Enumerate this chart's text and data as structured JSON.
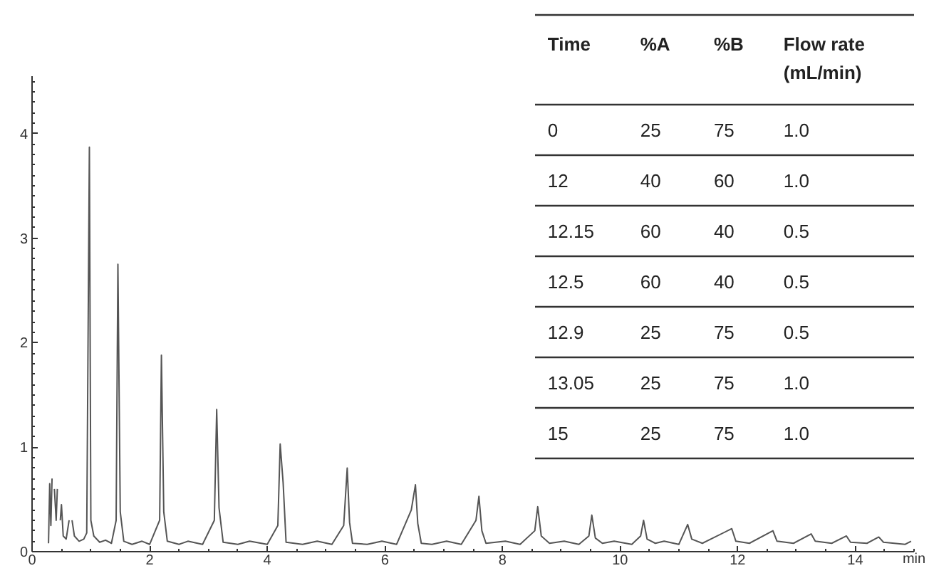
{
  "chart_data": [
    {
      "type": "line",
      "xlabel": "min",
      "color": "#555555",
      "xlim": [
        0,
        15
      ],
      "ylim": [
        0,
        4.55
      ],
      "xticks": [
        0,
        2,
        4,
        6,
        8,
        10,
        12,
        14
      ],
      "yticks": [
        0,
        1,
        2,
        3,
        4
      ],
      "grid": false,
      "marker": "none",
      "line_style": "solid",
      "x": [
        0.28,
        0.3,
        0.32,
        0.34,
        0.36,
        0.38,
        0.41,
        0.43,
        0.46,
        0.48,
        0.5,
        0.53,
        0.58,
        0.63,
        0.655,
        0.68,
        0.72,
        0.8,
        0.88,
        0.93,
        0.975,
        1.0,
        1.05,
        1.15,
        1.25,
        1.35,
        1.43,
        1.46,
        1.5,
        1.56,
        1.7,
        1.87,
        2.0,
        2.17,
        2.2,
        2.24,
        2.3,
        2.5,
        2.65,
        2.9,
        3.1,
        3.14,
        3.18,
        3.25,
        3.5,
        3.7,
        4.0,
        4.18,
        4.22,
        4.27,
        4.32,
        4.6,
        4.85,
        5.1,
        5.3,
        5.36,
        5.4,
        5.45,
        5.7,
        5.95,
        6.2,
        6.45,
        6.52,
        6.56,
        6.62,
        6.8,
        7.05,
        7.3,
        7.55,
        7.6,
        7.65,
        7.72,
        8.05,
        8.3,
        8.55,
        8.6,
        8.66,
        8.8,
        9.05,
        9.3,
        9.47,
        9.52,
        9.58,
        9.7,
        9.9,
        10.2,
        10.35,
        10.4,
        10.46,
        10.6,
        10.75,
        11.0,
        11.15,
        11.22,
        11.4,
        11.9,
        11.97,
        12.2,
        12.6,
        12.67,
        12.95,
        13.25,
        13.32,
        13.6,
        13.85,
        13.92,
        14.2,
        14.4,
        14.48,
        14.85,
        14.95
      ],
      "values": [
        0.08,
        0.65,
        0.25,
        0.7,
        null,
        0.6,
        0.3,
        0.6,
        null,
        0.3,
        0.45,
        0.15,
        0.12,
        0.3,
        null,
        0.3,
        0.15,
        0.1,
        0.12,
        0.18,
        3.87,
        0.3,
        0.15,
        0.09,
        0.11,
        0.08,
        0.3,
        2.75,
        0.38,
        0.1,
        0.07,
        0.1,
        0.07,
        0.3,
        1.88,
        0.38,
        0.1,
        0.07,
        0.1,
        0.07,
        0.3,
        1.36,
        0.42,
        0.09,
        0.07,
        0.1,
        0.07,
        0.25,
        1.03,
        0.66,
        0.09,
        0.07,
        0.1,
        0.07,
        0.25,
        0.8,
        0.28,
        0.08,
        0.07,
        0.1,
        0.07,
        0.4,
        0.64,
        0.27,
        0.08,
        0.07,
        0.1,
        0.07,
        0.3,
        0.53,
        0.2,
        0.08,
        0.1,
        0.07,
        0.2,
        0.43,
        0.15,
        0.08,
        0.1,
        0.07,
        0.15,
        0.35,
        0.13,
        0.08,
        0.1,
        0.07,
        0.15,
        0.3,
        0.12,
        0.08,
        0.1,
        0.07,
        0.26,
        0.12,
        0.08,
        0.22,
        0.1,
        0.08,
        0.2,
        0.1,
        0.08,
        0.17,
        0.1,
        0.08,
        0.15,
        0.09,
        0.08,
        0.14,
        0.09,
        0.07,
        0.1
      ]
    },
    {
      "type": "other",
      "categories": [
        "Time",
        "%A",
        "%B",
        "Flow rate\n(mL/min)"
      ],
      "cell_labels": [
        [
          "0",
          "25",
          "75",
          "1.0"
        ],
        [
          "12",
          "40",
          "60",
          "1.0"
        ],
        [
          "12.15",
          "60",
          "40",
          "0.5"
        ],
        [
          "12.5",
          "60",
          "40",
          "0.5"
        ],
        [
          "12.9",
          "25",
          "75",
          "0.5"
        ],
        [
          "13.05",
          "25",
          "75",
          "1.0"
        ],
        [
          "15",
          "25",
          "75",
          "1.0"
        ]
      ]
    }
  ]
}
